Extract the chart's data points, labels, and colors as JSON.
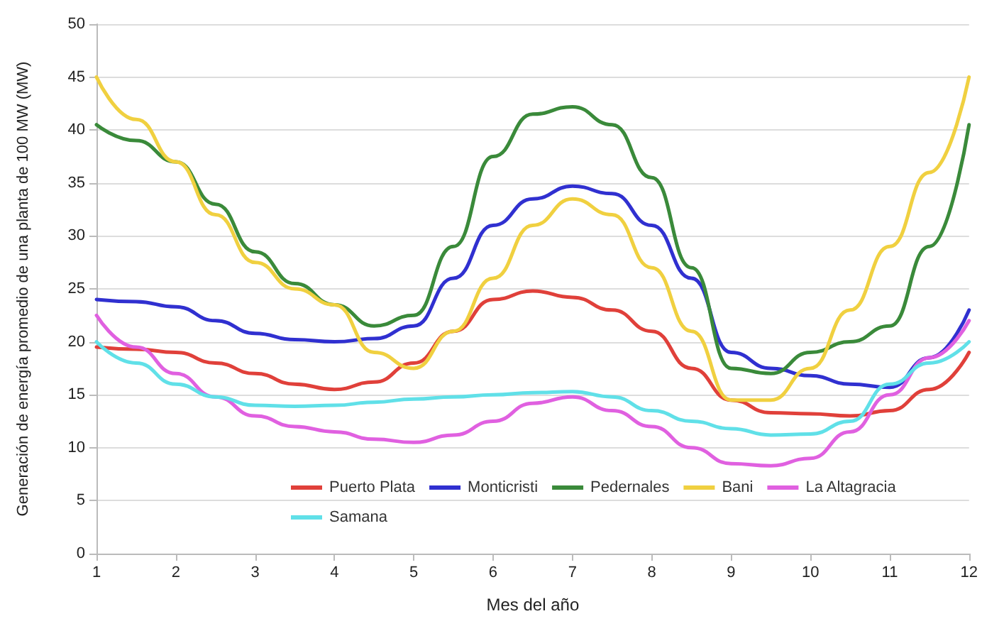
{
  "chart_data": {
    "type": "line",
    "xlabel": "Mes del año",
    "ylabel": "Generación de energía promedio de una planta de 100 MW (MW)",
    "x": [
      1,
      1.5,
      2,
      2.5,
      3,
      3.5,
      4,
      4.5,
      5,
      5.5,
      6,
      6.5,
      7,
      7.5,
      8,
      8.5,
      9,
      9.5,
      10,
      10.5,
      11,
      11.5,
      12
    ],
    "xlim": [
      1,
      12
    ],
    "xticks": [
      1,
      2,
      3,
      4,
      5,
      6,
      7,
      8,
      9,
      10,
      11,
      12
    ],
    "ylim": [
      0,
      50
    ],
    "yticks": [
      0,
      5,
      10,
      15,
      20,
      25,
      30,
      35,
      40,
      45,
      50
    ],
    "grid": "y",
    "legend": "bottom",
    "marker": "none",
    "line_style": "solid",
    "series": [
      {
        "name": "Puerto Plata",
        "color": "#e0403a",
        "values": [
          19.5,
          19.3,
          19,
          18,
          17,
          16,
          15.5,
          16.2,
          18,
          21,
          24,
          24.8,
          24.2,
          23,
          21,
          17.5,
          14.5,
          13.3,
          13.2,
          13,
          13.5,
          15.5,
          19
        ]
      },
      {
        "name": "Monticristi",
        "color": "#3030d0",
        "values": [
          24,
          23.8,
          23.3,
          22,
          20.8,
          20.2,
          20,
          20.3,
          21.5,
          26,
          31,
          33.5,
          34.7,
          34,
          31,
          26,
          19,
          17.5,
          16.8,
          16,
          15.7,
          18.5,
          23
        ]
      },
      {
        "name": "Pedernales",
        "color": "#3a8a3a",
        "values": [
          40.5,
          39,
          37,
          33,
          28.5,
          25.5,
          23.5,
          21.5,
          22.5,
          29,
          37.5,
          41.5,
          42.2,
          40.5,
          35.5,
          27,
          17.5,
          17,
          19,
          20,
          21.5,
          29,
          40.5
        ]
      },
      {
        "name": "Bani",
        "color": "#f0d040",
        "values": [
          45,
          41,
          37,
          32,
          27.5,
          25,
          23.5,
          19,
          17.5,
          21,
          26,
          31,
          33.5,
          32,
          27,
          21,
          14.5,
          14.5,
          17.5,
          23,
          29,
          36,
          45
        ]
      },
      {
        "name": "La Altagracia",
        "color": "#e060e0",
        "values": [
          22.5,
          19.5,
          17,
          14.8,
          13,
          12,
          11.5,
          10.8,
          10.5,
          11.2,
          12.5,
          14.2,
          14.8,
          13.5,
          12,
          10,
          8.5,
          8.3,
          9,
          11.5,
          15,
          18.5,
          22
        ]
      },
      {
        "name": "Samana",
        "color": "#60e0e8",
        "values": [
          20,
          18,
          16,
          14.8,
          14,
          13.9,
          14,
          14.3,
          14.6,
          14.8,
          15,
          15.2,
          15.3,
          14.8,
          13.5,
          12.5,
          11.8,
          11.2,
          11.3,
          12.5,
          16,
          18,
          20
        ]
      }
    ]
  }
}
